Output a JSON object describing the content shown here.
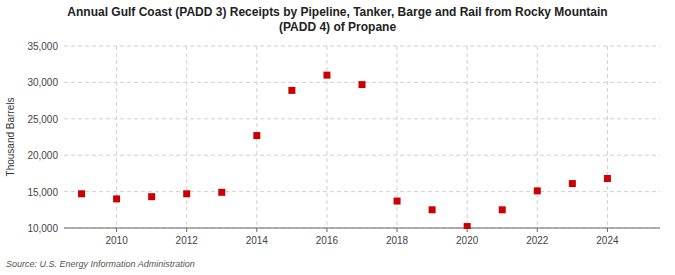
{
  "chart_data": {
    "type": "scatter",
    "title": "Annual Gulf Coast (PADD 3) Receipts by Pipeline, Tanker, Barge and Rail from Rocky Mountain\n(PADD 4) of Propane",
    "ylabel": "Thousand Barrels",
    "source": "Source: U.S. Energy Information Administration",
    "x": [
      2009,
      2010,
      2011,
      2012,
      2013,
      2014,
      2015,
      2016,
      2017,
      2018,
      2019,
      2020,
      2021,
      2022,
      2023,
      2024
    ],
    "values": [
      14700,
      14000,
      14300,
      14700,
      14900,
      22700,
      28900,
      31000,
      29700,
      13700,
      12500,
      10200,
      12500,
      15100,
      16100,
      16800
    ],
    "color": "#cc0000",
    "marker": "square",
    "xlim": [
      2008.5,
      2025.5
    ],
    "xticks": [
      2010,
      2012,
      2014,
      2016,
      2018,
      2020,
      2022,
      2024
    ],
    "ylim": [
      10000,
      35000
    ],
    "yticks": [
      {
        "value": 10000,
        "label": "10,000"
      },
      {
        "value": 15000,
        "label": "15,000"
      },
      {
        "value": 20000,
        "label": "20,000"
      },
      {
        "value": 25000,
        "label": "25,000"
      },
      {
        "value": 30000,
        "label": "30,000"
      },
      {
        "value": 35000,
        "label": "35,000"
      }
    ],
    "grid": true
  }
}
